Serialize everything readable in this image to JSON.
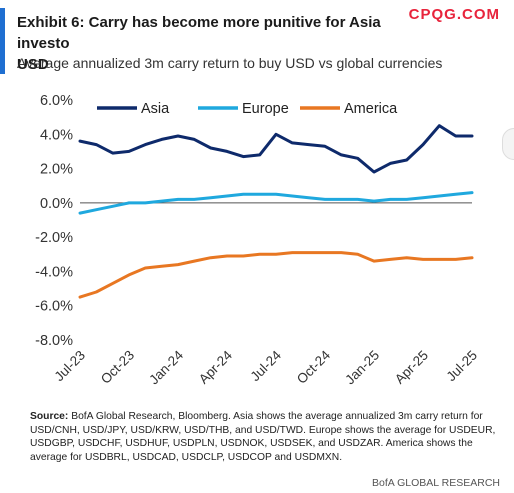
{
  "header": {
    "title": "Exhibit 6: Carry has become more punitive for Asia investo",
    "title_line2": "USD",
    "watermark": "CPQG.COM",
    "subtitle": "Average annualized 3m carry return to buy USD vs global currencies"
  },
  "footer": {
    "source_label": "Source:",
    "source_text": " BofA Global Research, Bloomberg. Asia shows the average annualized 3m carry return for USD/CNH, USD/JPY, USD/KRW, USD/THB, and USD/TWD. Europe shows the average for USDEUR, USDGBP, USDCHF, USDHUF, USDPLN, USDNOK, USDSEK, and USDZAR. America shows the average for USDBRL, USDCAD, USDCLP, USDCOP and USDMXN.",
    "credit": "BofA GLOBAL RESEARCH"
  },
  "chart_data": {
    "type": "line",
    "title": "",
    "xlabel": "",
    "ylabel": "",
    "ylim": [
      -8.0,
      6.0
    ],
    "yticks": [
      "6.0%",
      "4.0%",
      "2.0%",
      "0.0%",
      "-2.0%",
      "-4.0%",
      "-6.0%",
      "-8.0%"
    ],
    "ytick_values": [
      6,
      4,
      2,
      0,
      -2,
      -4,
      -6,
      -8
    ],
    "xtick_labels": [
      "Jul-23",
      "Oct-23",
      "Jan-24",
      "Apr-24",
      "Jul-24",
      "Oct-24",
      "Jan-25",
      "Apr-25",
      "Jul-25"
    ],
    "xtick_dates": [
      "2023-07",
      "2023-10",
      "2024-01",
      "2024-04",
      "2024-07",
      "2024-10",
      "2025-01",
      "2025-04",
      "2025-07"
    ],
    "grid": false,
    "legend_position": "top",
    "x": [
      "2023-07",
      "2023-08",
      "2023-09",
      "2023-10",
      "2023-11",
      "2023-12",
      "2024-01",
      "2024-02",
      "2024-03",
      "2024-04",
      "2024-05",
      "2024-06",
      "2024-07",
      "2024-08",
      "2024-09",
      "2024-10",
      "2024-11",
      "2024-12",
      "2025-01",
      "2025-02",
      "2025-03",
      "2025-04",
      "2025-05",
      "2025-06",
      "2025-07"
    ],
    "series": [
      {
        "name": "Asia",
        "color": "#0e2a6b",
        "values": [
          3.6,
          3.4,
          2.9,
          3.0,
          3.4,
          3.7,
          3.9,
          3.7,
          3.2,
          3.0,
          2.7,
          2.8,
          4.0,
          3.5,
          3.4,
          3.3,
          2.8,
          2.6,
          1.8,
          2.3,
          2.5,
          3.4,
          4.5,
          3.9,
          3.9
        ]
      },
      {
        "name": "Europe",
        "color": "#1fa8de",
        "values": [
          -0.6,
          -0.4,
          -0.2,
          0.0,
          0.0,
          0.1,
          0.2,
          0.2,
          0.3,
          0.4,
          0.5,
          0.5,
          0.5,
          0.4,
          0.3,
          0.2,
          0.2,
          0.2,
          0.1,
          0.2,
          0.2,
          0.3,
          0.4,
          0.5,
          0.6
        ]
      },
      {
        "name": "America",
        "color": "#e87722",
        "values": [
          -5.5,
          -5.2,
          -4.7,
          -4.2,
          -3.8,
          -3.7,
          -3.6,
          -3.4,
          -3.2,
          -3.1,
          -3.1,
          -3.0,
          -3.0,
          -2.9,
          -2.9,
          -2.9,
          -2.9,
          -3.0,
          -3.4,
          -3.3,
          -3.2,
          -3.3,
          -3.3,
          -3.3,
          -3.2
        ]
      }
    ]
  }
}
